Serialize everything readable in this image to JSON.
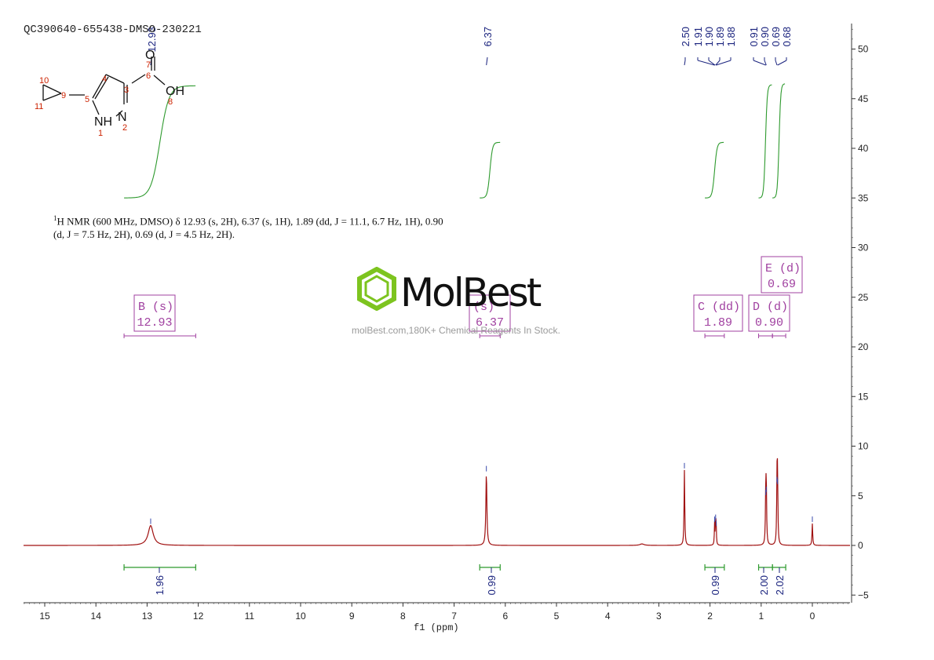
{
  "sample_id": "QC390640-655438-DMSO-230221",
  "nmr_description": {
    "nucleus_sup": "1",
    "line1": "H NMR (600 MHz, DMSO) δ 12.93 (s, 2H), 6.37 (s, 1H), 1.89 (dd, J = 11.1, 6.7 Hz, 1H), 0.90",
    "line2": "(d, J = 7.5 Hz, 2H), 0.69 (d, J = 4.5 Hz, 2H)."
  },
  "watermark": {
    "brand": "MolBest",
    "url": "molBest.com,180K+ Chemical Reagents In Stock."
  },
  "structure": {
    "atom_labels": [
      "NH",
      "N",
      "OH",
      "O"
    ],
    "atom_numbers": [
      "1",
      "2",
      "3",
      "4",
      "5",
      "6",
      "7",
      "8",
      "9",
      "10",
      "11"
    ]
  },
  "chart_data": {
    "type": "line",
    "xlabel": "f1 (ppm)",
    "xlim": [
      15.4,
      -0.7
    ],
    "ylim": [
      -5.5,
      52.5
    ],
    "x_ticks": [
      15,
      14,
      13,
      12,
      11,
      10,
      9,
      8,
      7,
      6,
      5,
      4,
      3,
      2,
      1,
      0
    ],
    "y_ticks": [
      -5,
      0,
      5,
      10,
      15,
      20,
      25,
      30,
      35,
      40,
      45,
      50
    ],
    "peak_labels_top": [
      "12.93",
      "6.37",
      "2.50",
      "1.91",
      "1.90",
      "1.89",
      "1.88",
      "0.91",
      "0.90",
      "0.69",
      "0.68"
    ],
    "peaks": [
      {
        "ppm": 12.93,
        "height": 2.0,
        "width": 0.06
      },
      {
        "ppm": 6.37,
        "height": 7.3,
        "width": 0.012
      },
      {
        "ppm": 2.5,
        "height": 7.6,
        "width": 0.008
      },
      {
        "ppm": 1.91,
        "height": 2.2,
        "width": 0.006
      },
      {
        "ppm": 1.89,
        "height": 2.4,
        "width": 0.006
      },
      {
        "ppm": 1.88,
        "height": 1.8,
        "width": 0.006
      },
      {
        "ppm": 0.91,
        "height": 4.9,
        "width": 0.008
      },
      {
        "ppm": 0.9,
        "height": 5.2,
        "width": 0.008
      },
      {
        "ppm": 0.69,
        "height": 6.2,
        "width": 0.008
      },
      {
        "ppm": 0.68,
        "height": 6.0,
        "width": 0.008
      },
      {
        "ppm": 3.33,
        "height": 0.15,
        "width": 0.05
      },
      {
        "ppm": 0.0,
        "height": 2.2,
        "width": 0.008
      }
    ],
    "multiplets": [
      {
        "name": "B (s)",
        "shift": "12.93",
        "from": 13.45,
        "to": 12.05
      },
      {
        "name": "(s)",
        "shift": "6.37",
        "from": 6.5,
        "to": 6.1
      },
      {
        "name": "C (dd)",
        "shift": "1.89",
        "from": 2.1,
        "to": 1.72
      },
      {
        "name": "D (d)",
        "shift": "0.90",
        "from": 1.05,
        "to": 0.78
      },
      {
        "name": "E (d)",
        "shift": "0.69",
        "from": 0.78,
        "to": 0.52
      }
    ],
    "integrals": [
      {
        "from": 13.45,
        "to": 12.05,
        "value": "1.96",
        "y_low": 35.0,
        "y_high": 46.3
      },
      {
        "from": 6.5,
        "to": 6.1,
        "value": "0.99",
        "y_low": 35.0,
        "y_high": 40.6
      },
      {
        "from": 2.1,
        "to": 1.72,
        "value": "0.99",
        "y_low": 35.0,
        "y_high": 40.6
      },
      {
        "from": 1.05,
        "to": 0.78,
        "value": "2.00",
        "y_low": 35.0,
        "y_high": 46.4
      },
      {
        "from": 0.78,
        "to": 0.52,
        "value": "2.02",
        "y_low": 35.0,
        "y_high": 46.5
      }
    ],
    "colors": {
      "spectrum": "#a01010",
      "integral": "#2e9a2e",
      "peak_label": "#1a237e",
      "multiplet": "#a040a0",
      "axis": "#333333"
    }
  }
}
